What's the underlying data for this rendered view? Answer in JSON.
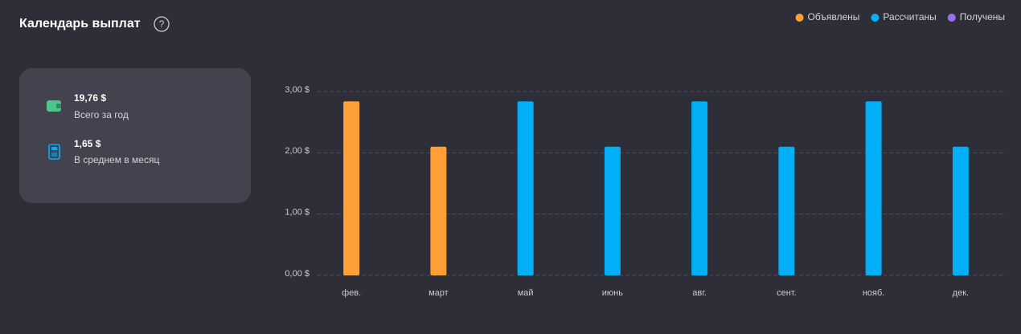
{
  "header": {
    "title": "Календарь выплат",
    "help": "?"
  },
  "summary": [
    {
      "value": "19,76 $",
      "label": "Всего за год"
    },
    {
      "value": "1,65 $",
      "label": "В среднем в месяц"
    }
  ],
  "chart_data": {
    "type": "bar",
    "categories": [
      "фев.",
      "март",
      "май",
      "июнь",
      "авг.",
      "сент.",
      "нояб.",
      "дек."
    ],
    "series": [
      {
        "name": "Объявлены",
        "color": "#ff9f36",
        "values": [
          2.84,
          2.1,
          null,
          null,
          null,
          null,
          null,
          null
        ]
      },
      {
        "name": "Рассчитаны",
        "color": "#00aff5",
        "values": [
          null,
          null,
          2.84,
          2.1,
          2.84,
          2.1,
          2.84,
          2.1
        ]
      },
      {
        "name": "Получены",
        "color": "#9d6cf0",
        "values": [
          null,
          null,
          null,
          null,
          null,
          null,
          null,
          null
        ]
      }
    ],
    "ylim": [
      0,
      3
    ],
    "yticks": [
      {
        "value": 0,
        "label": "0,00 $"
      },
      {
        "value": 1,
        "label": "1,00 $"
      },
      {
        "value": 2,
        "label": "2,00 $"
      },
      {
        "value": 3,
        "label": "3,00 $"
      }
    ],
    "grid": true,
    "legend": "top-right"
  }
}
